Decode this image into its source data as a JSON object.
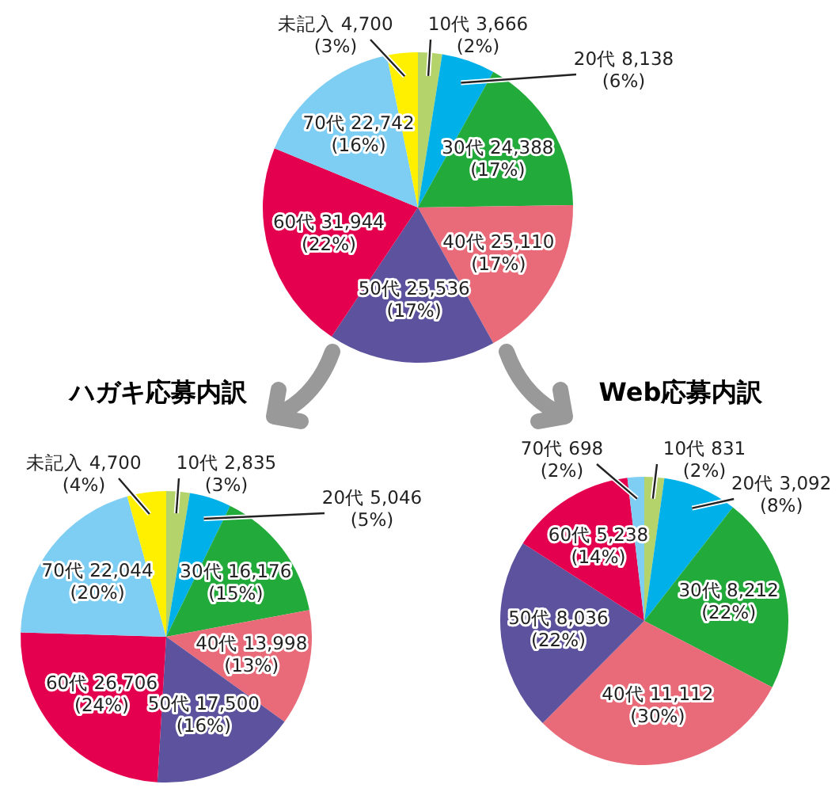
{
  "chart_data": [
    {
      "type": "pie",
      "categories": [
        "10代",
        "20代",
        "30代",
        "40代",
        "50代",
        "60代",
        "70代",
        "未記入"
      ],
      "values": [
        3666,
        8138,
        24388,
        25110,
        25536,
        31944,
        22742,
        4700
      ],
      "colors": [
        "#b5d36b",
        "#00b0e8",
        "#22aa3a",
        "#e96a78",
        "#5c529e",
        "#e4004f",
        "#7ecef4",
        "#fff000"
      ],
      "value_labels": [
        "3,666\n(2%)",
        "8,138\n(6%)",
        "24,388\n(17%)",
        "25,110\n(17%)",
        "25,536\n(17%)",
        "31,944\n(22%)",
        "22,742\n(16%)",
        "4,700\n(3%)"
      ]
    },
    {
      "type": "pie",
      "title": "ハガキ応募内訳",
      "categories": [
        "10代",
        "20代",
        "30代",
        "40代",
        "50代",
        "60代",
        "70代",
        "未記入"
      ],
      "values": [
        2835,
        5046,
        16176,
        13998,
        17500,
        26706,
        22044,
        4700
      ],
      "colors": [
        "#b5d36b",
        "#00b0e8",
        "#22aa3a",
        "#e96a78",
        "#5c529e",
        "#e4004f",
        "#7ecef4",
        "#fff000"
      ],
      "value_labels": [
        "2,835\n(3%)",
        "5,046\n(5%)",
        "16,176\n(15%)",
        "13,998\n(13%)",
        "17,500\n(16%)",
        "26,706\n(24%)",
        "22,044\n(20%)",
        "4,700\n(4%)"
      ]
    },
    {
      "type": "pie",
      "title": "Web応募内訳",
      "categories": [
        "10代",
        "20代",
        "30代",
        "40代",
        "50代",
        "60代",
        "70代"
      ],
      "values": [
        831,
        3092,
        8212,
        11112,
        8036,
        5238,
        698
      ],
      "colors": [
        "#b5d36b",
        "#00b0e8",
        "#22aa3a",
        "#e96a78",
        "#5c529e",
        "#e4004f",
        "#7ecef4"
      ],
      "value_labels": [
        "831\n(2%)",
        "3,092\n(8%)",
        "8,212\n(22%)",
        "11,112\n(30%)",
        "8,036\n(22%)",
        "5,238\n(14%)",
        "698\n(2%)"
      ]
    }
  ]
}
